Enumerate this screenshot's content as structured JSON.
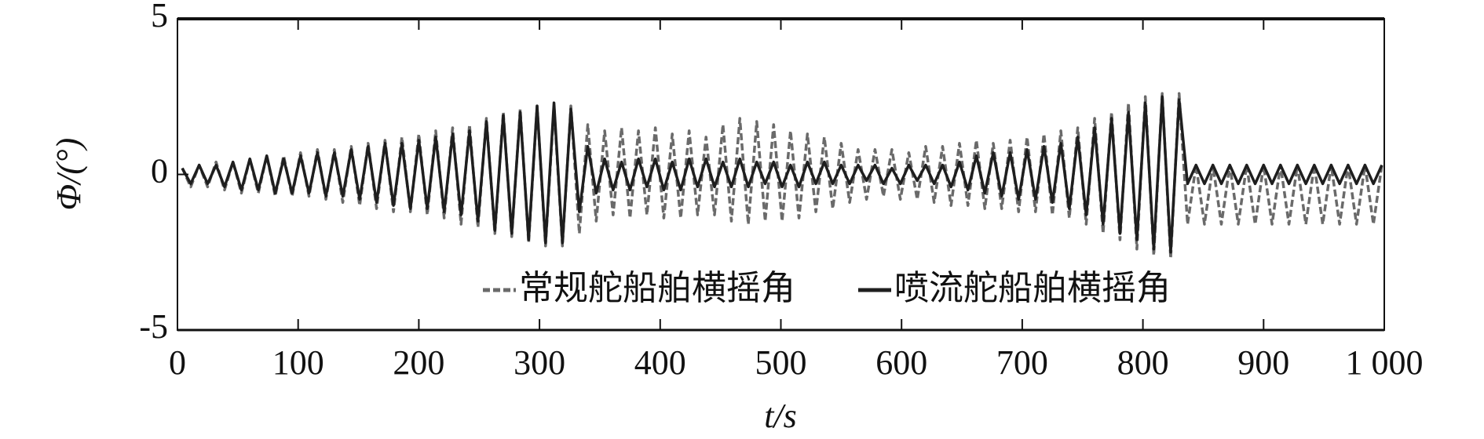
{
  "chart_data": {
    "type": "line",
    "x_label": "t/s",
    "y_label": "Φ/(°)",
    "xlim": [
      0,
      1000
    ],
    "xticks": [
      0,
      100,
      200,
      300,
      400,
      500,
      600,
      700,
      800,
      900,
      {
        "value": 1000,
        "label": "1 000"
      }
    ],
    "ylim": [
      -5,
      5
    ],
    "yticks": [
      -5,
      0,
      5
    ],
    "legend_position": "lower right",
    "x": [
      4,
      11,
      18,
      25,
      32,
      39,
      46,
      53,
      60,
      67,
      74,
      81,
      88,
      95,
      102,
      109,
      116,
      123,
      130,
      137,
      144,
      151,
      158,
      165,
      172,
      179,
      186,
      193,
      200,
      207,
      214,
      221,
      228,
      235,
      242,
      249,
      256,
      263,
      270,
      277,
      284,
      291,
      298,
      305,
      312,
      319,
      326,
      333,
      340,
      347,
      354,
      361,
      368,
      375,
      382,
      389,
      396,
      403,
      410,
      417,
      424,
      431,
      438,
      445,
      452,
      459,
      466,
      473,
      480,
      487,
      494,
      501,
      508,
      515,
      522,
      529,
      536,
      543,
      550,
      557,
      564,
      571,
      578,
      585,
      592,
      599,
      606,
      613,
      620,
      627,
      634,
      641,
      648,
      655,
      662,
      669,
      676,
      683,
      690,
      697,
      704,
      711,
      718,
      725,
      732,
      739,
      746,
      753,
      760,
      767,
      774,
      781,
      788,
      795,
      802,
      809,
      816,
      823,
      830,
      837,
      844,
      851,
      858,
      865,
      872,
      879,
      886,
      893,
      900,
      907,
      914,
      921,
      928,
      935,
      942,
      949,
      956,
      963,
      970,
      977,
      984,
      991,
      998
    ],
    "series": [
      {
        "name": "常规舵船舶横摇角",
        "color": "#6a6a6a",
        "dash": true,
        "values": [
          0.2,
          -0.4,
          0.3,
          -0.4,
          0.4,
          -0.5,
          0.4,
          -0.6,
          0.5,
          -0.6,
          0.6,
          -0.7,
          0.6,
          -0.7,
          0.7,
          -0.7,
          0.8,
          -0.8,
          0.8,
          -0.9,
          0.9,
          -1,
          1,
          -1.1,
          1.1,
          -1.2,
          1.2,
          -1.2,
          1.3,
          -1.3,
          1.4,
          -1.4,
          1.5,
          -1.6,
          1.6,
          -1.7,
          1.8,
          -1.9,
          2,
          -2,
          2.1,
          -2.2,
          2.2,
          -2.3,
          2.2,
          -2.3,
          2.2,
          -1.9,
          1.6,
          -1.5,
          1.4,
          -1.3,
          1.5,
          -1.4,
          1.4,
          -1.3,
          1.5,
          -1.4,
          1.3,
          -1.4,
          1.4,
          -1.3,
          1.2,
          -1.3,
          1.6,
          -1.5,
          1.8,
          -1.6,
          1.7,
          -1.5,
          1.6,
          -1.5,
          1.4,
          -1.4,
          1.3,
          -1.2,
          1.2,
          -1.1,
          1,
          -0.9,
          0.8,
          -0.8,
          0.8,
          -0.7,
          0.8,
          -0.8,
          0.7,
          -0.8,
          0.9,
          -0.9,
          0.9,
          -1,
          1,
          -1,
          1.1,
          -1.1,
          1,
          -1.1,
          1.1,
          -1.2,
          1.2,
          -1.2,
          1.3,
          -1.3,
          1.4,
          -1.4,
          1.5,
          -1.6,
          1.8,
          -1.9,
          2,
          -2.1,
          2.3,
          -2.4,
          2.5,
          -2.6,
          2.6,
          -2.7,
          2.6,
          -1.6,
          0.3,
          -1.6,
          0.3,
          -1.6,
          0.3,
          -1.6,
          0.3,
          -1.6,
          0.3,
          -1.6,
          0.3,
          -1.6,
          0.3,
          -1.6,
          0.3,
          -1.6,
          0.3,
          -1.6,
          0.3,
          -1.6,
          0.3,
          -1.6,
          0.3
        ]
      },
      {
        "name": "喷流舵船舶横摇角",
        "color": "#1e1e1e",
        "dash": false,
        "values": [
          0.2,
          -0.3,
          0.3,
          -0.3,
          0.3,
          -0.4,
          0.4,
          -0.5,
          0.5,
          -0.5,
          0.6,
          -0.6,
          0.5,
          -0.6,
          0.6,
          -0.6,
          0.7,
          -0.7,
          0.7,
          -0.7,
          0.8,
          -0.8,
          0.9,
          -0.9,
          1,
          -1,
          1,
          -1.1,
          1.1,
          -1.1,
          1.2,
          -1.2,
          1.3,
          -1.3,
          1.4,
          -1.5,
          1.7,
          -1.8,
          1.9,
          -1.9,
          2,
          -2.1,
          2.2,
          -2.2,
          2.3,
          -2.2,
          2.1,
          -1.2,
          0.9,
          -0.6,
          0.5,
          -0.5,
          0.4,
          -0.5,
          0.5,
          -0.4,
          0.5,
          -0.5,
          0.4,
          -0.5,
          0.5,
          -0.4,
          0.5,
          -0.4,
          0.4,
          -0.4,
          0.5,
          -0.4,
          0.4,
          -0.3,
          0.4,
          -0.4,
          0.3,
          -0.4,
          0.4,
          -0.3,
          0.4,
          -0.3,
          0.3,
          -0.3,
          0.3,
          -0.2,
          0.3,
          -0.3,
          0.2,
          -0.3,
          0.3,
          -0.2,
          0.3,
          -0.3,
          0.3,
          -0.4,
          0.4,
          -0.5,
          0.6,
          -0.6,
          0.7,
          -0.7,
          0.7,
          -0.8,
          0.8,
          -0.8,
          0.9,
          -0.9,
          1,
          -1.1,
          1.2,
          -1.3,
          1.5,
          -1.6,
          1.8,
          -1.9,
          2,
          -2.1,
          2.3,
          -2.4,
          2.5,
          -2.5,
          2.4,
          -0.3,
          0.3,
          -0.3,
          0.3,
          -0.3,
          0.3,
          -0.3,
          0.3,
          -0.3,
          0.3,
          -0.3,
          0.3,
          -0.3,
          0.3,
          -0.3,
          0.3,
          -0.3,
          0.3,
          -0.3,
          0.3,
          -0.3,
          0.3,
          -0.3,
          0.3
        ]
      }
    ]
  }
}
